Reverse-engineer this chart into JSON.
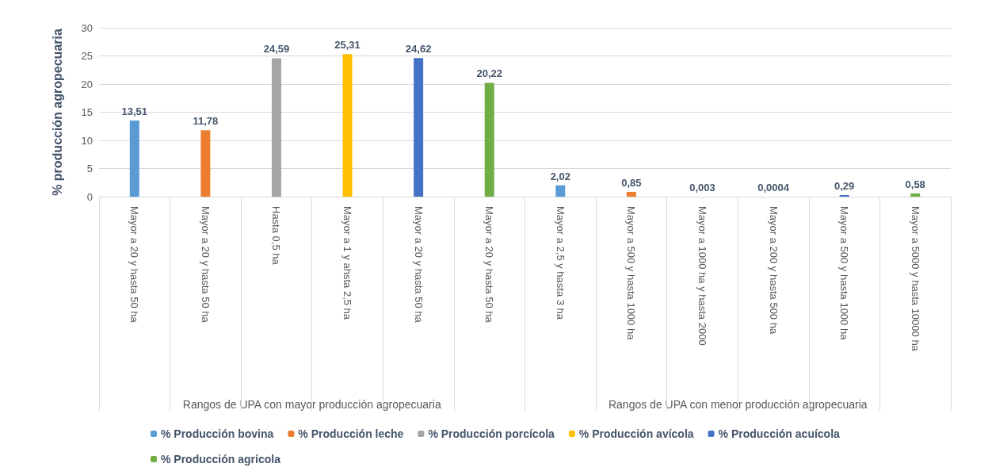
{
  "chart_data": {
    "type": "bar",
    "ylabel": "% producción agropecuaria",
    "categories": [
      "Mayor a 20 y hasta 50 ha",
      "Mayor a 20 y hasta 50 ha",
      "Hasta 0,5 ha",
      "Mayor a 1 y ahsta 2,5 ha",
      "Mayor a 20 y hasta 50 ha",
      "Mayor a 20 y hasta 50 ha",
      "Mayor a 2,5 y hasta 3 ha",
      "Mayor a 500 y hasta 1000 ha",
      "Mayor a 1000 ha y hasta 2000",
      "Mayor a 200 y hasta 500 ha",
      "Mayor a 500 y hasta 1000 ha",
      "Mayor a 5000 y hasta 10000 ha"
    ],
    "series": [
      {
        "name": "% Producción bovina",
        "color": "#5b9bd5",
        "values": [
          13.51,
          null,
          null,
          null,
          null,
          null,
          2.02,
          null,
          null,
          null,
          null,
          null
        ],
        "value_labels": [
          "13,51",
          null,
          null,
          null,
          null,
          null,
          "2,02",
          null,
          null,
          null,
          null,
          null
        ]
      },
      {
        "name": "% Producción leche",
        "color": "#ed7d31",
        "values": [
          null,
          11.78,
          null,
          null,
          null,
          null,
          null,
          0.85,
          null,
          null,
          null,
          null
        ],
        "value_labels": [
          null,
          "11,78",
          null,
          null,
          null,
          null,
          null,
          "0,85",
          null,
          null,
          null,
          null
        ]
      },
      {
        "name": "% Producción porcícola",
        "color": "#a5a5a5",
        "values": [
          null,
          null,
          24.59,
          null,
          null,
          null,
          null,
          null,
          0.003,
          null,
          null,
          null
        ],
        "value_labels": [
          null,
          null,
          "24,59",
          null,
          null,
          null,
          null,
          null,
          "0,003",
          null,
          null,
          null
        ]
      },
      {
        "name": "% Producción avícola",
        "color": "#ffc000",
        "values": [
          null,
          null,
          null,
          25.31,
          null,
          null,
          null,
          null,
          null,
          0.0004,
          null,
          null
        ],
        "value_labels": [
          null,
          null,
          null,
          "25,31",
          null,
          null,
          null,
          null,
          null,
          "0,0004",
          null,
          null
        ]
      },
      {
        "name": "% Producción acuícola",
        "color": "#4472c4",
        "values": [
          null,
          null,
          null,
          null,
          24.62,
          null,
          null,
          null,
          null,
          null,
          0.29,
          null
        ],
        "value_labels": [
          null,
          null,
          null,
          null,
          "24,62",
          null,
          null,
          null,
          null,
          null,
          "0,29",
          null
        ]
      },
      {
        "name": "% Producción agrícola",
        "color": "#70ad47",
        "values": [
          null,
          null,
          null,
          null,
          null,
          20.22,
          null,
          null,
          null,
          null,
          null,
          0.58
        ],
        "value_labels": [
          null,
          null,
          null,
          null,
          null,
          "20,22",
          null,
          null,
          null,
          null,
          null,
          "0,58"
        ]
      }
    ],
    "annotations": [
      "Rangos de UPA con mayor producción agropecuaria",
      "Rangos de UPA con menor producción agropecuaria"
    ],
    "ylim": [
      0,
      30
    ],
    "yticks": [
      0,
      5,
      10,
      15,
      20,
      25,
      30
    ],
    "grid": "y",
    "legend": "bottom"
  }
}
